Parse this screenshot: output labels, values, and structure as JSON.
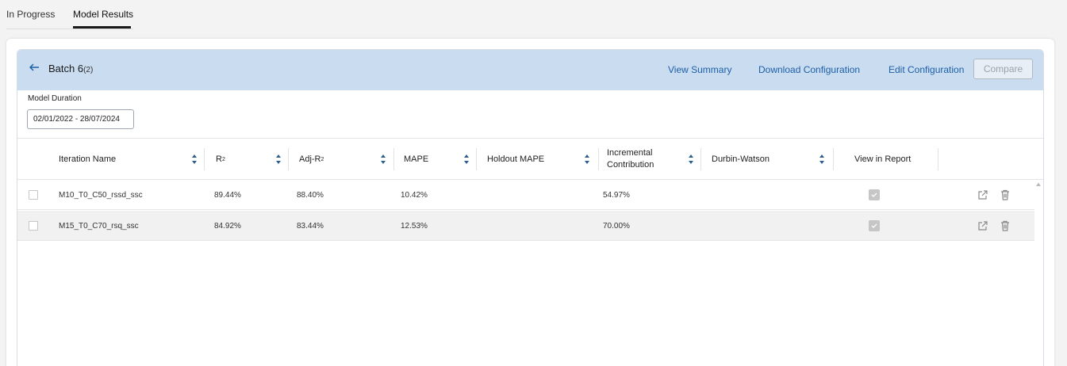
{
  "tabs": [
    {
      "label": "In Progress",
      "active": false
    },
    {
      "label": "Model Results",
      "active": true
    }
  ],
  "header": {
    "back_icon": "arrow-left-icon",
    "title": "Batch 6",
    "count": "(2)",
    "links": {
      "view_summary": "View Summary",
      "download_configuration": "Download Configuration",
      "edit_configuration": "Edit Configuration"
    },
    "compare_label": "Compare",
    "compare_disabled": true
  },
  "filter": {
    "label": "Model Duration",
    "value": "02/01/2022 - 28/07/2024"
  },
  "table": {
    "columns": {
      "iteration_name": "Iteration Name",
      "r2": "R",
      "r2_sup": "2",
      "adj_r2": "Adj-R",
      "adj_r2_sup": "2",
      "mape": "MAPE",
      "holdout_mape": "Holdout MAPE",
      "incremental_l1": "Incremental",
      "incremental_l2": "Contribution",
      "durbin_watson": "Durbin-Watson",
      "view_in_report": "View in Report"
    },
    "rows": [
      {
        "name": "M10_T0_C50_rssd_ssc",
        "r2": "89.44%",
        "adj_r2": "88.40%",
        "mape": "10.42%",
        "holdout_mape": "",
        "incremental": "54.97%",
        "durbin_watson": "",
        "in_report": true
      },
      {
        "name": "M15_T0_C70_rsq_ssc",
        "r2": "84.92%",
        "adj_r2": "83.44%",
        "mape": "12.53%",
        "holdout_mape": "",
        "incremental": "70.00%",
        "durbin_watson": "",
        "in_report": true
      }
    ]
  },
  "colors": {
    "header_bg": "#c9dcf0",
    "link": "#1d5fa8",
    "sort_icon": "#2b5c8f"
  }
}
